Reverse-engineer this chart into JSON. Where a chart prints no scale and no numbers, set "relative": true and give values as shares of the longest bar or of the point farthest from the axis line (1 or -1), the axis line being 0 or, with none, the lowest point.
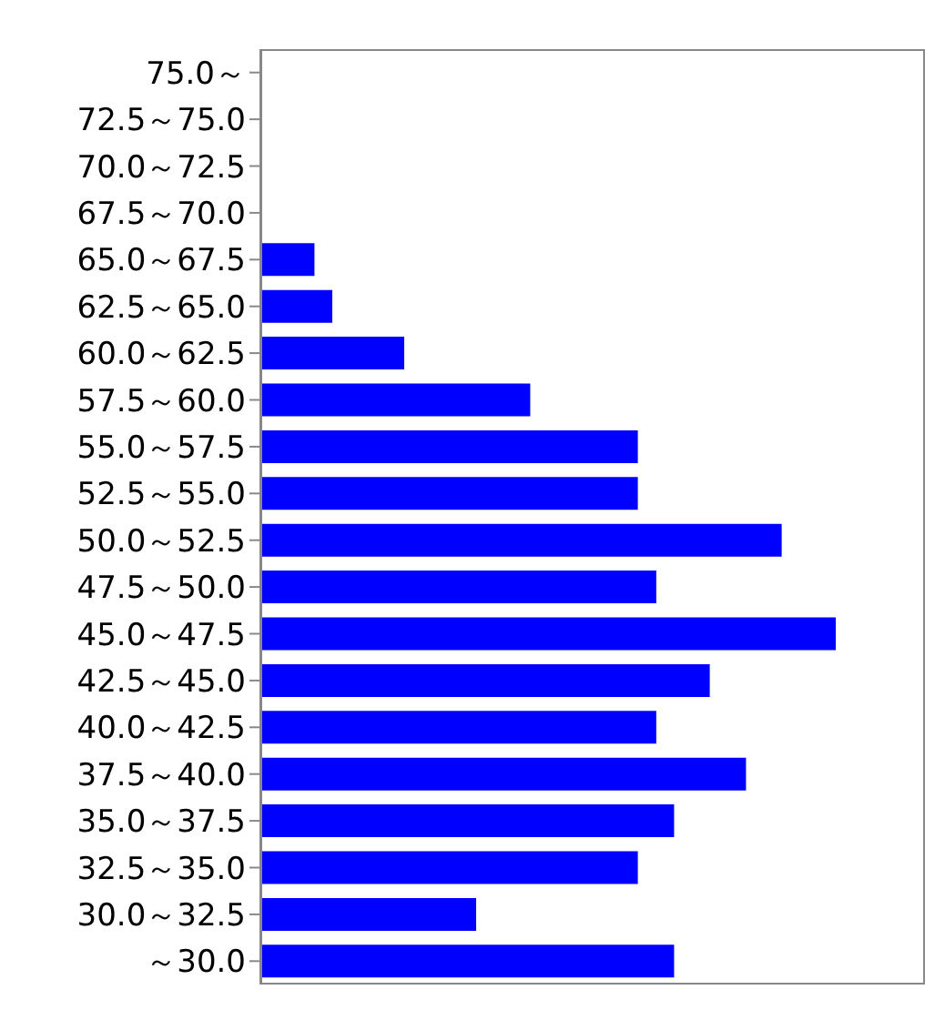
{
  "chart_data": {
    "type": "bar",
    "orientation": "horizontal",
    "relative": true,
    "categories": [
      "75.0～",
      "72.5～75.0",
      "70.0～72.5",
      "67.5～70.0",
      "65.0～67.5",
      "62.5～65.0",
      "60.0～62.5",
      "57.5～60.0",
      "55.0～57.5",
      "52.5～55.0",
      "50.0～52.5",
      "47.5～50.0",
      "45.0～47.5",
      "42.5～45.0",
      "40.0～42.5",
      "37.5～40.0",
      "35.0～37.5",
      "32.5～35.0",
      "30.0～32.5",
      "～30.0"
    ],
    "values": [
      0,
      0,
      0,
      0,
      0.094,
      0.125,
      0.25,
      0.469,
      0.656,
      0.656,
      0.906,
      0.688,
      1,
      0.781,
      0.688,
      0.844,
      0.719,
      0.656,
      0.375,
      0.719
    ],
    "color": "#0000ff",
    "grid": false,
    "legend": false
  }
}
